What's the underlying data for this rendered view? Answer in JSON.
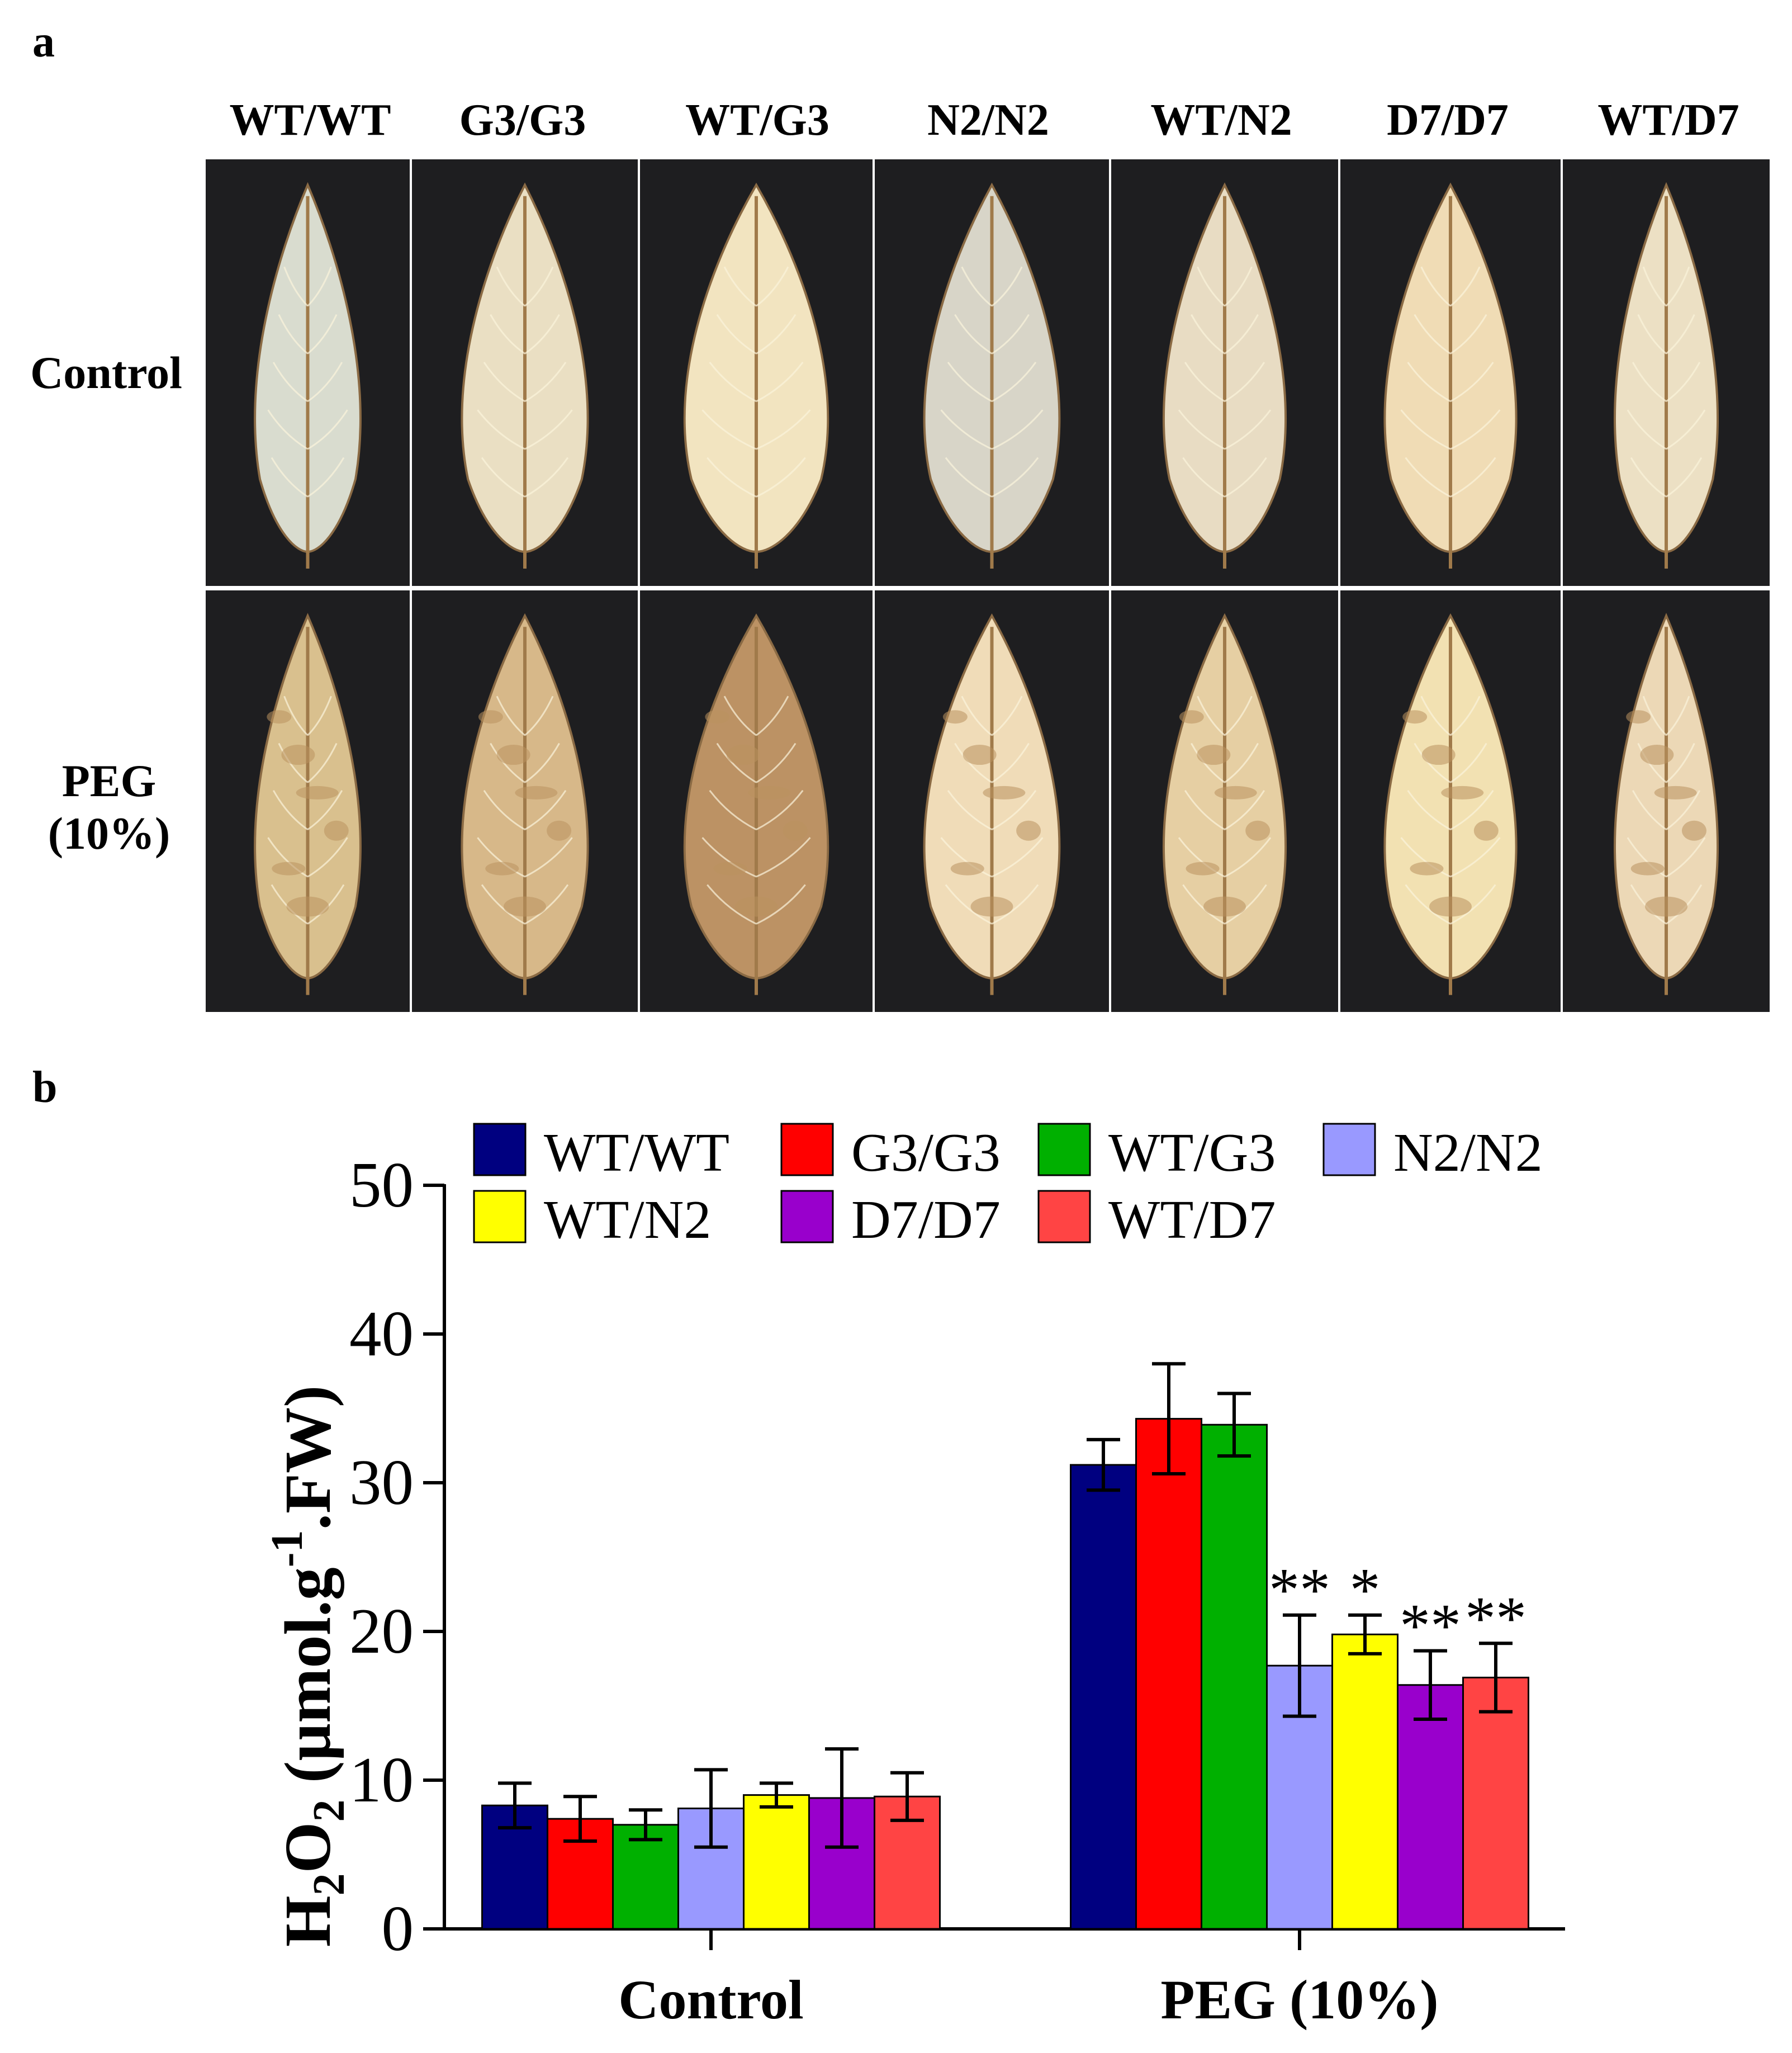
{
  "panel_a": {
    "letter": "a",
    "columns": [
      "WT/WT",
      "G3/G3",
      "WT/G3",
      "N2/N2",
      "WT/N2",
      "D7/D7",
      "WT/D7"
    ],
    "rows": [
      {
        "label_lines": [
          "Control"
        ]
      },
      {
        "label_lines": [
          "PEG",
          "(10%)"
        ]
      }
    ],
    "colors": {
      "background": "#1e1e20",
      "leaf_light": "#f0e2c0",
      "leaf_dark": "#b9925e",
      "vein": "#fbf3dc"
    }
  },
  "panel_b": {
    "letter": "b",
    "chart_data": {
      "type": "bar",
      "categories": [
        "Control",
        "PEG (10%)"
      ],
      "series": [
        {
          "name": "WT/WT",
          "color": "#000080",
          "values": [
            8.3,
            31.2
          ],
          "errors": [
            1.5,
            1.7
          ],
          "sig": [
            "",
            ""
          ]
        },
        {
          "name": "G3/G3",
          "color": "#ff0000",
          "values": [
            7.4,
            34.3
          ],
          "errors": [
            1.5,
            3.7
          ],
          "sig": [
            "",
            ""
          ]
        },
        {
          "name": "WT/G3",
          "color": "#00b000",
          "values": [
            7.0,
            33.9
          ],
          "errors": [
            1.0,
            2.1
          ],
          "sig": [
            "",
            ""
          ]
        },
        {
          "name": "N2/N2",
          "color": "#9999ff",
          "values": [
            8.1,
            17.7
          ],
          "errors": [
            2.6,
            3.4
          ],
          "sig": [
            "",
            "**"
          ]
        },
        {
          "name": "WT/N2",
          "color": "#ffff00",
          "values": [
            9.0,
            19.8
          ],
          "errors": [
            0.8,
            1.3
          ],
          "sig": [
            "",
            "*"
          ]
        },
        {
          "name": "D7/D7",
          "color": "#9900cc",
          "values": [
            8.8,
            16.4
          ],
          "errors": [
            3.3,
            2.3
          ],
          "sig": [
            "",
            "**"
          ]
        },
        {
          "name": "WT/D7",
          "color": "#ff4444",
          "values": [
            8.9,
            16.9
          ],
          "errors": [
            1.6,
            2.3
          ],
          "sig": [
            "",
            "**"
          ]
        }
      ],
      "ylim": [
        0,
        50
      ],
      "yticks": [
        0,
        10,
        20,
        30,
        40,
        50
      ],
      "ylabel": {
        "main": "H",
        "sub1": "2",
        "mid": "O",
        "sub2": "2",
        "rest": " (µmol.g",
        "sup": "-1",
        "end": ".FW)"
      },
      "xlabel": "",
      "title": "",
      "legend_position": "top"
    }
  }
}
